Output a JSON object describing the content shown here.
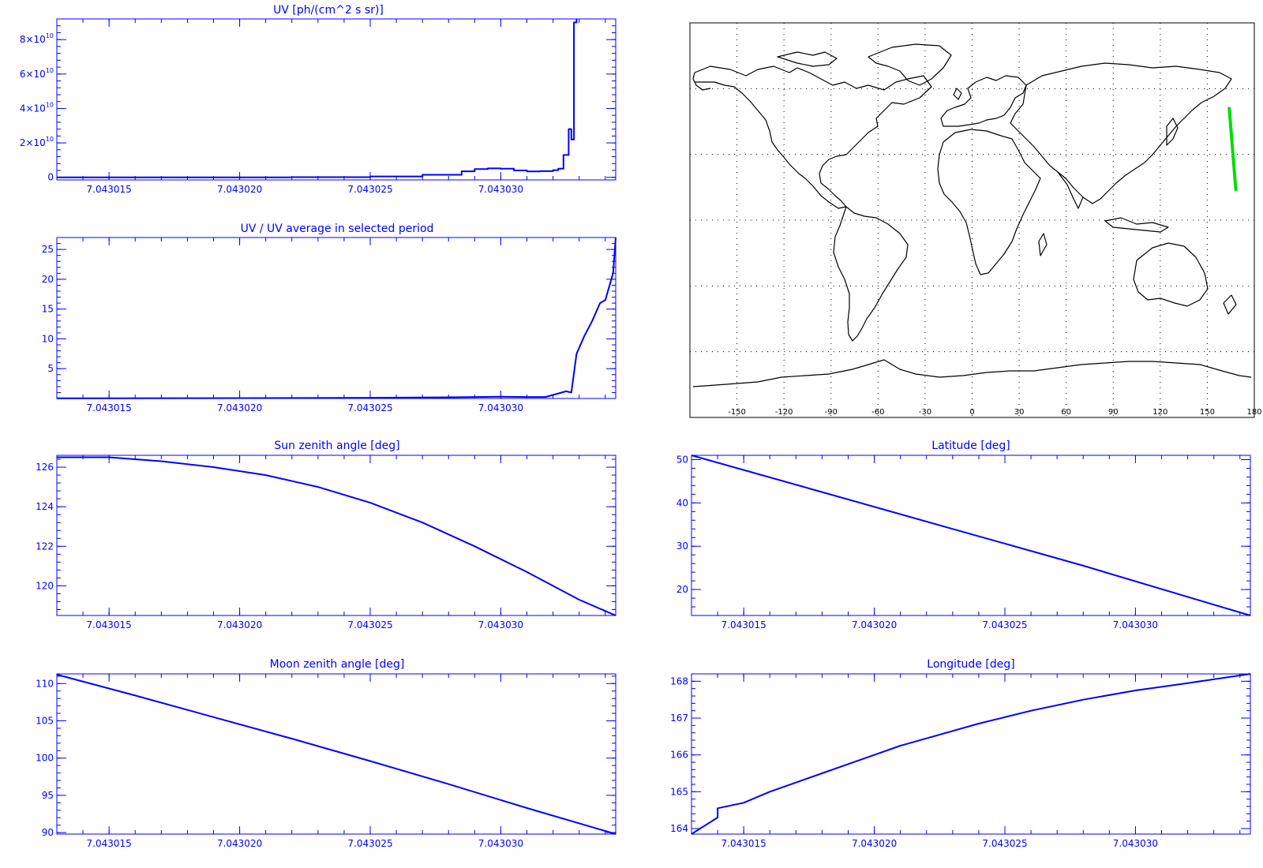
{
  "colors": {
    "axis": "#0000ff",
    "series": "#0000ff",
    "map_coast": "#000000",
    "track": "#00dd00",
    "grid": "#000000",
    "background": "#ffffff"
  },
  "chart_data": [
    {
      "id": "uv",
      "type": "line",
      "step": true,
      "title": "UV [ph/(cm^2 s sr)]",
      "xlim": [
        7.043013,
        7.0430344
      ],
      "ylim": [
        -1500000000,
        92000000000
      ],
      "x_ticks": [
        7.043015,
        7.04302,
        7.043025,
        7.04303
      ],
      "x_tick_labels": [
        "7.043015",
        "7.043020",
        "7.043025",
        "7.043030"
      ],
      "y_ticks": [
        0,
        20000000000,
        40000000000,
        60000000000,
        80000000000
      ],
      "y_tick_labels": [
        {
          "mantissa": "0",
          "exponent": ""
        },
        {
          "mantissa": "2×10",
          "exponent": "10"
        },
        {
          "mantissa": "4×10",
          "exponent": "10"
        },
        {
          "mantissa": "6×10",
          "exponent": "10"
        },
        {
          "mantissa": "8×10",
          "exponent": "10"
        }
      ],
      "series": [
        {
          "x": [
            7.043013,
            7.043018,
            7.043022,
            7.043025,
            7.043027,
            7.0430285,
            7.043029,
            7.0430295,
            7.04303,
            7.0430305,
            7.043031,
            7.0430315,
            7.043032,
            7.0430322,
            7.0430324,
            7.0430326,
            7.0430327,
            7.0430328,
            7.0430329
          ],
          "y": [
            0,
            0,
            100000000,
            500000000,
            1500000000,
            3500000000,
            4800000000,
            5200000000,
            5000000000,
            4000000000,
            3400000000,
            3600000000,
            4200000000,
            5000000000,
            13000000000,
            28000000000,
            22000000000,
            90000000000,
            92000000000
          ]
        }
      ]
    },
    {
      "id": "uv-ratio",
      "type": "line",
      "title": "UV / UV average in selected period",
      "xlim": [
        7.043013,
        7.0430344
      ],
      "ylim": [
        0,
        27
      ],
      "x_ticks": [
        7.043015,
        7.04302,
        7.043025,
        7.04303
      ],
      "x_tick_labels": [
        "7.043015",
        "7.043020",
        "7.043025",
        "7.043030"
      ],
      "y_ticks": [
        5,
        10,
        15,
        20,
        25
      ],
      "y_tick_labels": [
        "5",
        "10",
        "15",
        "20",
        "25"
      ],
      "series": [
        {
          "x": [
            7.043013,
            7.043018,
            7.043022,
            7.043025,
            7.043028,
            7.04303,
            7.043031,
            7.0430317,
            7.043032,
            7.0430325,
            7.0430327,
            7.0430329,
            7.043033,
            7.0430332,
            7.0430335,
            7.0430338,
            7.043034,
            7.0430343,
            7.0430344
          ],
          "y": [
            0.02,
            0.05,
            0.08,
            0.12,
            0.2,
            0.3,
            0.25,
            0.25,
            0.6,
            1.2,
            1.0,
            7.5,
            8.5,
            10.5,
            13.0,
            16.0,
            16.5,
            21.0,
            27.0
          ]
        }
      ]
    },
    {
      "id": "sun-zenith",
      "type": "line",
      "title": "Sun zenith angle [deg]",
      "xlim": [
        7.043013,
        7.0430344
      ],
      "ylim": [
        118.5,
        126.6
      ],
      "x_ticks": [
        7.043015,
        7.04302,
        7.043025,
        7.04303
      ],
      "x_tick_labels": [
        "7.043015",
        "7.043020",
        "7.043025",
        "7.043030"
      ],
      "y_ticks": [
        120,
        122,
        124,
        126
      ],
      "y_tick_labels": [
        "120",
        "122",
        "124",
        "126"
      ],
      "series": [
        {
          "x": [
            7.043013,
            7.043015,
            7.043017,
            7.043019,
            7.043021,
            7.043023,
            7.043025,
            7.043027,
            7.043029,
            7.043031,
            7.043033,
            7.0430344
          ],
          "y": [
            126.5,
            126.5,
            126.3,
            126.0,
            125.6,
            125.0,
            124.2,
            123.2,
            122.0,
            120.7,
            119.3,
            118.5
          ]
        }
      ]
    },
    {
      "id": "moon-zenith",
      "type": "line",
      "title": "Moon zenith angle [deg]",
      "xlim": [
        7.043013,
        7.0430344
      ],
      "ylim": [
        89.8,
        111.3
      ],
      "x_ticks": [
        7.043015,
        7.04302,
        7.043025,
        7.04303
      ],
      "x_tick_labels": [
        "7.043015",
        "7.043020",
        "7.043025",
        "7.043030"
      ],
      "y_ticks": [
        90,
        95,
        100,
        105,
        110
      ],
      "y_tick_labels": [
        "90",
        "95",
        "100",
        "105",
        "110"
      ],
      "series": [
        {
          "x": [
            7.043013,
            7.043016,
            7.043019,
            7.043022,
            7.043025,
            7.043028,
            7.043031,
            7.0430344
          ],
          "y": [
            111.2,
            108.4,
            105.5,
            102.6,
            99.6,
            96.5,
            93.3,
            89.8
          ]
        }
      ]
    },
    {
      "id": "latitude",
      "type": "line",
      "title": "Latitude [deg]",
      "xlim": [
        7.043013,
        7.0430344
      ],
      "ylim": [
        14,
        51
      ],
      "x_ticks": [
        7.043015,
        7.04302,
        7.043025,
        7.04303
      ],
      "x_tick_labels": [
        "7.043015",
        "7.043020",
        "7.043025",
        "7.043030"
      ],
      "y_ticks": [
        20,
        30,
        40,
        50
      ],
      "y_tick_labels": [
        "20",
        "30",
        "40",
        "50"
      ],
      "series": [
        {
          "x": [
            7.043013,
            7.043018,
            7.043023,
            7.043028,
            7.043033,
            7.0430344
          ],
          "y": [
            51.0,
            42.5,
            34.0,
            25.5,
            16.5,
            14.0
          ]
        }
      ]
    },
    {
      "id": "longitude",
      "type": "line",
      "title": "Longitude [deg]",
      "xlim": [
        7.043013,
        7.0430344
      ],
      "ylim": [
        163.85,
        168.2
      ],
      "x_ticks": [
        7.043015,
        7.04302,
        7.043025,
        7.04303
      ],
      "x_tick_labels": [
        "7.043015",
        "7.043020",
        "7.043025",
        "7.043030"
      ],
      "y_ticks": [
        164,
        165,
        166,
        167,
        168
      ],
      "y_tick_labels": [
        "164",
        "165",
        "166",
        "167",
        "168"
      ],
      "series": [
        {
          "x": [
            7.043013,
            7.043014,
            7.043014,
            7.043015,
            7.043016,
            7.043017,
            7.043018,
            7.043019,
            7.04302,
            7.043021,
            7.043022,
            7.043024,
            7.043026,
            7.043028,
            7.04303,
            7.043032,
            7.0430344
          ],
          "y": [
            163.85,
            164.3,
            164.55,
            164.7,
            165.0,
            165.25,
            165.5,
            165.75,
            166.0,
            166.25,
            166.45,
            166.85,
            167.2,
            167.5,
            167.75,
            167.95,
            168.2
          ]
        }
      ]
    }
  ],
  "map": {
    "type": "map",
    "lon_range": [
      -180,
      180
    ],
    "lat_range": [
      -90,
      90
    ],
    "grid": true,
    "lon_ticks": [
      -150,
      -120,
      -90,
      -60,
      -30,
      0,
      30,
      60,
      90,
      120,
      150,
      180
    ],
    "lon_tick_labels": [
      "-150",
      "-120",
      "-90",
      "-60",
      "-30",
      "0",
      "30",
      "60",
      "90",
      "120",
      "150",
      "180"
    ],
    "track": {
      "lon": [
        164.0,
        168.2
      ],
      "lat": [
        51.0,
        14.0
      ]
    }
  }
}
